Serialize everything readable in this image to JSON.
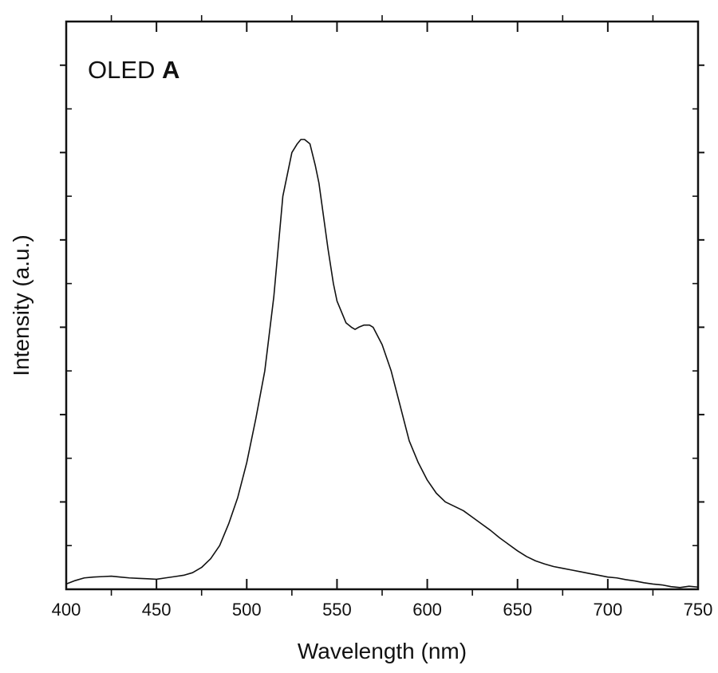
{
  "chart_data": {
    "type": "line",
    "title": "",
    "panel_label": {
      "prefix": "OLED ",
      "emphasis": "A"
    },
    "xlabel": "Wavelength (nm)",
    "ylabel": "Intensity (a.u.)",
    "xlim": [
      400,
      750
    ],
    "ylim": [
      0,
      1.3
    ],
    "x_ticks": [
      400,
      450,
      500,
      550,
      600,
      650,
      700,
      750
    ],
    "x_tick_labels": [
      "400",
      "450",
      "500",
      "550",
      "600",
      "650",
      "700",
      "750"
    ],
    "x_minor_step": 25,
    "y_major_ticks": [
      0.2,
      0.4,
      0.6,
      0.8,
      1.0,
      1.2
    ],
    "y_minor_ticks": [
      0.1,
      0.3,
      0.5,
      0.7,
      0.9,
      1.1
    ],
    "y_tick_labels_shown": false,
    "grid": false,
    "line_color": "#111111",
    "series": [
      {
        "x": [
          400,
          405,
          410,
          415,
          420,
          425,
          430,
          435,
          440,
          445,
          450,
          455,
          460,
          465,
          470,
          475,
          480,
          485,
          490,
          495,
          500,
          505,
          510,
          515,
          520,
          525,
          528,
          530,
          532,
          535,
          538,
          540,
          543,
          545,
          548,
          550,
          553,
          555,
          558,
          560,
          562,
          565,
          568,
          570,
          575,
          580,
          585,
          590,
          595,
          600,
          605,
          610,
          615,
          620,
          625,
          630,
          635,
          640,
          645,
          650,
          655,
          660,
          665,
          670,
          675,
          680,
          685,
          690,
          695,
          700,
          705,
          710,
          715,
          720,
          725,
          730,
          735,
          740,
          745,
          750
        ],
        "y": [
          0.012,
          0.02,
          0.026,
          0.028,
          0.029,
          0.03,
          0.028,
          0.026,
          0.025,
          0.024,
          0.023,
          0.026,
          0.029,
          0.032,
          0.038,
          0.05,
          0.07,
          0.1,
          0.15,
          0.21,
          0.29,
          0.39,
          0.5,
          0.67,
          0.9,
          1.0,
          1.02,
          1.03,
          1.03,
          1.02,
          0.97,
          0.93,
          0.84,
          0.78,
          0.7,
          0.66,
          0.63,
          0.61,
          0.6,
          0.595,
          0.6,
          0.605,
          0.605,
          0.6,
          0.56,
          0.5,
          0.42,
          0.34,
          0.29,
          0.25,
          0.22,
          0.2,
          0.19,
          0.18,
          0.165,
          0.15,
          0.135,
          0.118,
          0.103,
          0.088,
          0.075,
          0.065,
          0.058,
          0.052,
          0.048,
          0.044,
          0.04,
          0.036,
          0.032,
          0.028,
          0.026,
          0.022,
          0.019,
          0.015,
          0.012,
          0.01,
          0.006,
          0.004,
          0.007,
          0.005
        ]
      }
    ]
  }
}
